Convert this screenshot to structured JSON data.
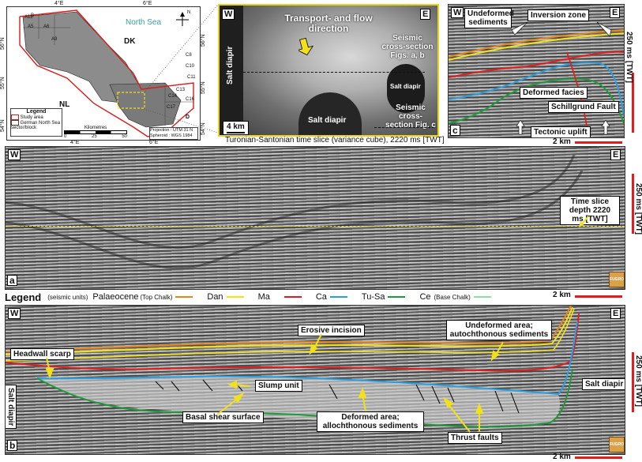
{
  "map": {
    "sea_label": "North Sea",
    "dk_label": "DK",
    "nl_label": "NL",
    "lat_labels": [
      "56°N",
      "55°N",
      "54°N"
    ],
    "lat_labels_right": [
      "56°N",
      "55°N",
      "54°N"
    ],
    "lon_labels_top": [
      "4°E",
      "6°E"
    ],
    "lon_labels_bottom": [
      "4°E",
      "6°E"
    ],
    "block_labels": [
      "A5",
      "A6",
      "A9",
      "A12",
      "B",
      "C8",
      "C10",
      "C11",
      "C14",
      "C13",
      "C17",
      "C16",
      "D"
    ],
    "legend_title": "Legend",
    "legend_items": [
      "Study area",
      "German North Sea sector/block"
    ],
    "scale_title": "Kilometres",
    "scale_ticks": [
      "0",
      "25",
      "50"
    ],
    "projection": "Projection : UTM 31 N",
    "spheroid": "Spheroid : WGS 1984",
    "north": "N"
  },
  "timeslice": {
    "w": "W",
    "e": "E",
    "flow_text": "Transport- and flow direction",
    "salt1": "Salt diapir",
    "salt2": "Salt diapir",
    "salt3": "Salt diapir",
    "section_ab": "Seismic cross-section Figs. a, b",
    "section_c": "Seismic cross-section Fig. c",
    "scale": "4 km",
    "caption": "Turonian-Santonian time slice (variance cube), 2220 ms [TWT]"
  },
  "panel_c": {
    "w": "W",
    "e": "E",
    "undeformed": "Undeformed sediments",
    "inversion": "Inversion zone",
    "deformed_facies": "Deformed facies",
    "fault": "Schillgrund Fault",
    "uplift": "Tectonic uplift",
    "letter": "c",
    "vscale": "250 ms [TWT]",
    "hscale": "2 km"
  },
  "panel_a": {
    "w": "W",
    "e": "E",
    "depth_label": "Time slice depth 2220 ms [TWT]",
    "letter": "a",
    "vscale": "250 ms [TWT]",
    "hscale": "2 km",
    "logo": "FUGRO"
  },
  "legend": {
    "title": "Legend",
    "units": "(seismic units)",
    "palaeocene": "Palaeocene",
    "top_chalk": "(Top Chalk)",
    "items": [
      {
        "name": "Dan",
        "color": "#e8861a"
      },
      {
        "name": "Ma",
        "color": "#f2e01a"
      },
      {
        "name": "Ca",
        "color": "#e21d1d"
      },
      {
        "name": "Tu-Sa",
        "color": "#2a9fe0"
      },
      {
        "name": "Ce",
        "color": "#1f9a3a"
      }
    ],
    "base_chalk": "(Base Chalk)",
    "base_color": "#8fe0a0"
  },
  "panel_b": {
    "w": "W",
    "e": "E",
    "erosive": "Erosive incision",
    "undeformed": "Undeformed area; autochthonous sediments",
    "headwall": "Headwall scarp",
    "slump": "Slump unit",
    "salt_right": "Salt diapir",
    "salt_left": "Salt diapir",
    "basal": "Basal shear surface",
    "deformed": "Deformed area; allochthonous sediments",
    "thrust": "Thrust faults",
    "letter": "b",
    "vscale": "250 ms [TWT]",
    "hscale": "2 km",
    "logo": "FUGRO"
  }
}
